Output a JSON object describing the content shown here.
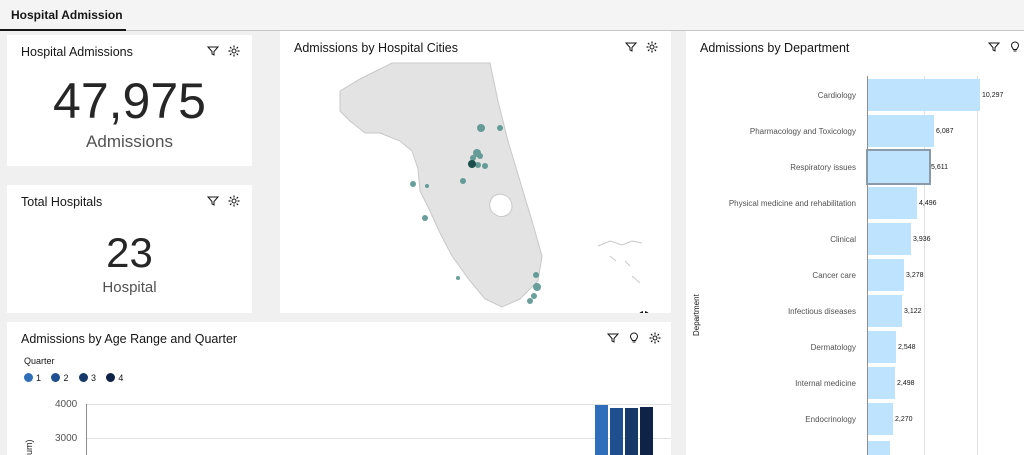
{
  "tabs": [
    {
      "label": "Hospital Admission"
    }
  ],
  "cards": {
    "admissions": {
      "title": "Hospital Admissions",
      "value": "47,975",
      "label": "Admissions"
    },
    "hospitals": {
      "title": "Total Hospitals",
      "value": "23",
      "label": "Hospital"
    },
    "map": {
      "title": "Admissions by Hospital Cities"
    },
    "department": {
      "title": "Admissions by Department",
      "axis_title": "Department"
    },
    "age_quarter": {
      "title": "Admissions by Age Range and Quarter",
      "legend_title": "Quarter",
      "y_axis_partial": "um)"
    }
  },
  "colors": {
    "bar_light": "#bde3ff",
    "map_dot": "#4f8f8a",
    "q1": "#2f6eba",
    "q2": "#1f4f8f",
    "q3": "#17396a",
    "q4": "#0e2347"
  },
  "icons": [
    "filter-icon",
    "settings-icon",
    "insight-icon",
    "info-icon"
  ],
  "chart_data": [
    {
      "type": "bar",
      "orientation": "horizontal",
      "categories": [
        "Cardiology",
        "Pharmacology and Toxicology",
        "Respiratory issues",
        "Physical medicine and rehabilitation",
        "Clinical",
        "Cancer care",
        "Infectious diseases",
        "Dermatology",
        "Internal medicine",
        "Endocrinology"
      ],
      "values": [
        10297,
        6087,
        5611,
        4496,
        3936,
        3278,
        3122,
        2548,
        2498,
        2270
      ],
      "value_labels": [
        "10,297",
        "6,087",
        "5,611",
        "4,496",
        "3,936",
        "3,278",
        "3,122",
        "2,548",
        "2,498",
        "2,270"
      ],
      "ylabel": "Department",
      "xlim": [
        0,
        10297
      ],
      "highlighted": "Respiratory issues"
    },
    {
      "type": "bar",
      "legend_title": "Quarter",
      "series": [
        {
          "name": "1"
        },
        {
          "name": "2"
        },
        {
          "name": "3"
        },
        {
          "name": "4"
        }
      ],
      "visible_values": [
        3980,
        3870,
        3870,
        3920
      ],
      "y_ticks": [
        "4000",
        "3000"
      ],
      "legend_placement": "top-left"
    }
  ]
}
